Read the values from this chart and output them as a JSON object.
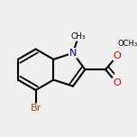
{
  "bg_color": "#f0f0f0",
  "bond_color": "#000000",
  "bond_width": 1.5,
  "dbo": 0.055,
  "N_color": "#0000cc",
  "O_color": "#cc0000",
  "Br_color": "#964B00",
  "text_color": "#000000",
  "font_size": 8.0,
  "small_font_size": 6.5,
  "figsize": [
    1.52,
    1.52
  ],
  "dpi": 100,
  "xlim": [
    -0.7,
    0.85
  ],
  "ylim": [
    -0.65,
    0.6
  ]
}
